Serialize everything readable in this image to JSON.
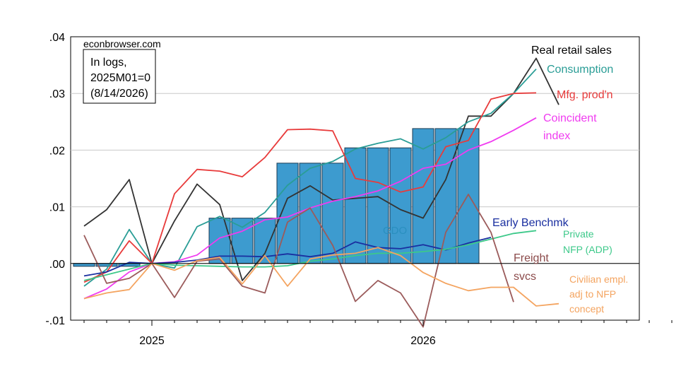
{
  "source_label": "econbrowser.com",
  "note": [
    "In logs,",
    "2025M01=0",
    "(8/14/2026)"
  ],
  "chart_data": {
    "type": "line",
    "note": "Monthly series, log deviations from 2025M01; GDO shown as quarterly bars",
    "x": [
      "2024-10",
      "2024-11",
      "2024-12",
      "2025-01",
      "2025-02",
      "2025-03",
      "2025-04",
      "2025-05",
      "2025-06",
      "2025-07",
      "2025-08",
      "2025-09",
      "2025-10",
      "2025-11",
      "2025-12",
      "2026-01",
      "2026-02",
      "2026-03",
      "2026-04",
      "2026-05",
      "2026-06",
      "2026-07",
      "2026-08",
      "2026-09",
      "2026-10",
      "2026-11",
      "2026-12"
    ],
    "xticks": [
      {
        "label": "2025",
        "at": "2025-01"
      },
      {
        "label": "2026",
        "at": "2026-01"
      }
    ],
    "ylim": [
      -0.01,
      0.04
    ],
    "yticks": [
      {
        "v": -0.01,
        "label": "-.01"
      },
      {
        "v": 0.0,
        "label": ".00"
      },
      {
        "v": 0.01,
        "label": ".01"
      },
      {
        "v": 0.02,
        "label": ".02"
      },
      {
        "v": 0.03,
        "label": ".03"
      },
      {
        "v": 0.04,
        "label": ".04"
      }
    ],
    "grid": true,
    "bars": {
      "name": "GDO",
      "color": "#3d9bcf",
      "values": [
        -0.0005,
        -0.0005,
        -0.0005,
        null,
        null,
        null,
        0.008,
        0.008,
        0.008,
        0.0177,
        0.0177,
        0.0177,
        0.0204,
        0.0204,
        0.0204,
        0.0238,
        0.0238,
        0.0238,
        null,
        null,
        null,
        null,
        null,
        null,
        null,
        null,
        null
      ]
    },
    "series": [
      {
        "name": "Real retail sales",
        "color": "#333333",
        "values": [
          0.0066,
          0.0095,
          0.0148,
          0.0,
          0.0075,
          0.014,
          0.0104,
          -0.003,
          0.0018,
          0.0115,
          0.0137,
          0.0112,
          0.0115,
          0.0118,
          0.0095,
          0.008,
          0.0148,
          0.026,
          0.026,
          0.03,
          0.0362,
          0.028,
          null,
          null,
          null,
          null,
          null
        ]
      },
      {
        "name": "Consumption",
        "color": "#2a9d96",
        "values": [
          -0.004,
          -0.001,
          0.006,
          0.0,
          -0.0008,
          0.0065,
          0.0083,
          0.0064,
          0.009,
          0.0138,
          0.0168,
          0.018,
          0.0202,
          0.0212,
          0.022,
          0.0202,
          0.0222,
          0.025,
          0.0265,
          0.03,
          0.0343,
          null,
          null,
          null,
          null,
          null,
          null
        ]
      },
      {
        "name": "Mfg. prod'n",
        "color": "#e83b3b",
        "values": [
          -0.0033,
          -0.0015,
          0.004,
          0.0,
          0.0123,
          0.0166,
          0.0163,
          0.0153,
          0.0187,
          0.0236,
          0.0237,
          0.0234,
          0.015,
          0.0143,
          0.0126,
          0.0135,
          0.0206,
          0.0217,
          0.029,
          0.03,
          0.0301,
          null,
          null,
          null,
          null,
          null,
          null
        ]
      },
      {
        "name": "Coincident index",
        "color": "#f03cf0",
        "values": [
          -0.0062,
          -0.0045,
          -0.0015,
          0.0,
          0.0003,
          0.0015,
          0.0045,
          0.0057,
          0.0077,
          0.0082,
          0.0098,
          0.011,
          0.0118,
          0.0128,
          0.0145,
          0.0168,
          0.0175,
          0.02,
          0.0215,
          0.0235,
          0.0257,
          null,
          null,
          null,
          null,
          null,
          null
        ]
      },
      {
        "name": "Early Benchmk",
        "color": "#1a2fa0",
        "values": [
          -0.0022,
          -0.0015,
          0.0002,
          0.0,
          0.0002,
          0.0006,
          0.0013,
          0.0013,
          0.0012,
          0.0017,
          0.0012,
          0.0018,
          0.0038,
          0.0028,
          0.0026,
          0.0033,
          0.0024,
          0.0036,
          0.0046,
          null,
          null,
          null,
          null,
          null,
          null,
          null,
          null
        ]
      },
      {
        "name": "Private NFP (ADP)",
        "color": "#3dc98a",
        "values": [
          -0.003,
          -0.002,
          -0.001,
          0.0,
          -0.0003,
          -0.0004,
          -0.0005,
          -0.0006,
          -0.0006,
          -0.0004,
          0.0004,
          0.0008,
          0.0014,
          0.0018,
          0.0018,
          0.0021,
          0.0025,
          0.0033,
          0.0043,
          0.0053,
          0.0058,
          null,
          null,
          null,
          null,
          null,
          null
        ]
      },
      {
        "name": "Freight svcs",
        "color": "#9b5b5b",
        "values": [
          0.005,
          -0.0035,
          -0.0026,
          0.0,
          -0.006,
          0.0004,
          0.0008,
          -0.004,
          -0.0052,
          0.0073,
          0.0098,
          0.0032,
          -0.0067,
          -0.003,
          -0.0052,
          -0.0112,
          0.0055,
          0.0122,
          0.0055,
          -0.0068,
          null,
          null,
          null,
          null,
          null,
          null,
          null
        ]
      },
      {
        "name": "Civilian empl. adj to NFP concept",
        "color": "#f4a460",
        "values": [
          -0.0062,
          -0.0052,
          -0.0046,
          0.0,
          -0.0012,
          0.0005,
          0.0011,
          -0.0036,
          0.0014,
          -0.004,
          0.0008,
          0.0015,
          0.0018,
          0.0028,
          0.0014,
          -0.0016,
          -0.0035,
          -0.0048,
          -0.0042,
          -0.0042,
          -0.0075,
          -0.0071,
          null,
          null,
          null,
          null,
          null
        ]
      }
    ],
    "labels": [
      {
        "key": "retail",
        "lines": [
          "Real retail sales"
        ],
        "color": "#000000"
      },
      {
        "key": "consumption",
        "lines": [
          "Consumption"
        ],
        "color": "#2a9d96"
      },
      {
        "key": "mfg",
        "lines": [
          "Mfg. prod'n"
        ],
        "color": "#e83b3b"
      },
      {
        "key": "coincident",
        "lines": [
          "Coincident",
          "index"
        ],
        "color": "#f03cf0"
      },
      {
        "key": "benchmk",
        "lines": [
          "Early Benchmk"
        ],
        "color": "#1a2fa0"
      },
      {
        "key": "adp",
        "lines": [
          "Private",
          "NFP (ADP)"
        ],
        "color": "#3dc98a"
      },
      {
        "key": "freight",
        "lines": [
          "Freight",
          "svcs"
        ],
        "color": "#8b4a4a"
      },
      {
        "key": "civ",
        "lines": [
          "Civilian empl.",
          "adj to NFP",
          "concept"
        ],
        "color": "#f4a460"
      },
      {
        "key": "gdo",
        "lines": [
          "GDO"
        ],
        "color": "#2a8fbf"
      }
    ]
  }
}
